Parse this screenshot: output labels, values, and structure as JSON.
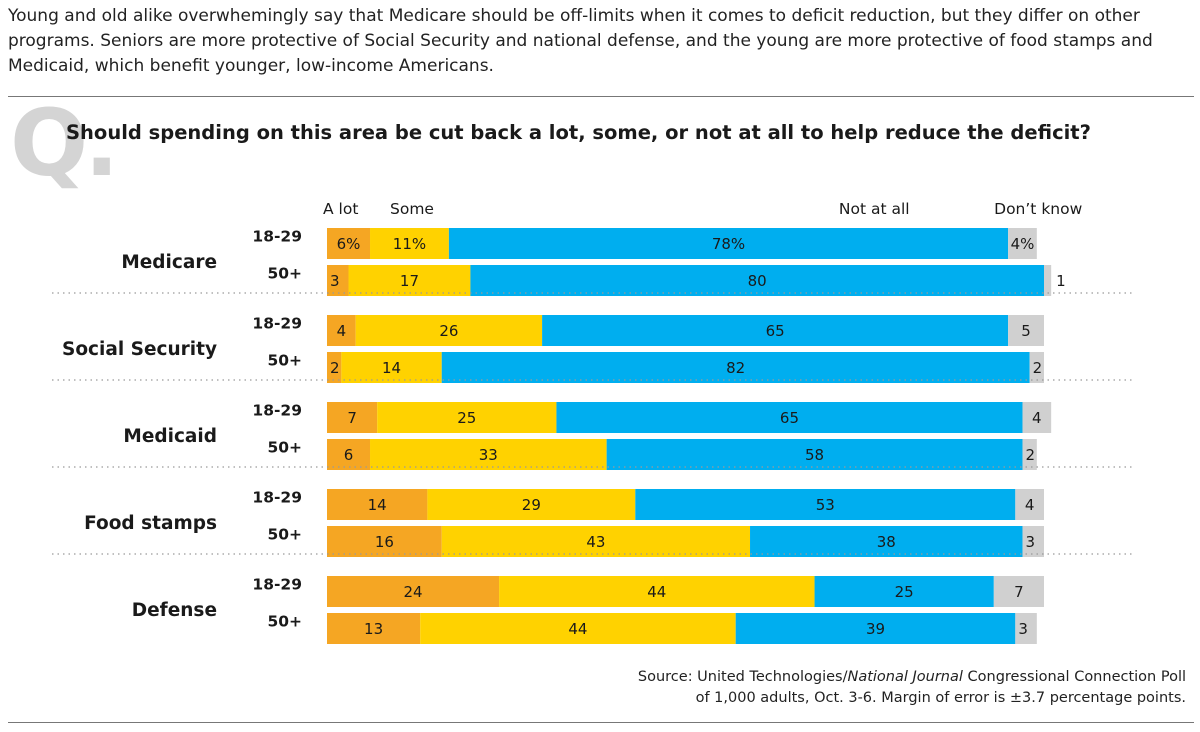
{
  "intro": "Young and old alike overwhemingly say that Medicare should be off-limits when it comes to deficit reduction, but they differ on other programs. Seniors are more protective of Social Security and national defense, and the young are more protective of food stamps and Medicaid, which benefit younger, low-income Americans.",
  "q_mark": "Q.",
  "question": "Should spending on this area be cut back a lot, some, or not at all to help reduce the deficit?",
  "source": {
    "line1_prefix": "Source: United Technologies/",
    "line1_italic": "National Journal",
    "line1_suffix": " Congressional Connection Poll",
    "line2": "of 1,000 adults, Oct. 3-6. Margin of error is ±3.7 percentage points."
  },
  "chart_data": {
    "type": "bar",
    "orientation": "horizontal",
    "stacked": true,
    "unit": "%",
    "series": [
      {
        "name": "A lot",
        "color": "#f5a623"
      },
      {
        "name": "Some",
        "color": "#ffd200"
      },
      {
        "name": "Not at all",
        "color": "#00aeef"
      },
      {
        "name": "Don’t know",
        "color": "#d0d0d0"
      }
    ],
    "groups": [
      {
        "name": "Medicare",
        "rows": [
          {
            "label": "18-29",
            "values": [
              6,
              11,
              78,
              4
            ],
            "labels": [
              "6%",
              "11%",
              "78%",
              "4%"
            ]
          },
          {
            "label": "50+",
            "values": [
              3,
              17,
              80,
              1
            ],
            "labels": [
              "3",
              "17",
              "80",
              "1"
            ]
          }
        ]
      },
      {
        "name": "Social Security",
        "rows": [
          {
            "label": "18-29",
            "values": [
              4,
              26,
              65,
              5
            ],
            "labels": [
              "4",
              "26",
              "65",
              "5"
            ]
          },
          {
            "label": "50+",
            "values": [
              2,
              14,
              82,
              2
            ],
            "labels": [
              "2",
              "14",
              "82",
              "2"
            ]
          }
        ]
      },
      {
        "name": "Medicaid",
        "rows": [
          {
            "label": "18-29",
            "values": [
              7,
              25,
              65,
              4
            ],
            "labels": [
              "7",
              "25",
              "65",
              "4"
            ]
          },
          {
            "label": "50+",
            "values": [
              6,
              33,
              58,
              2
            ],
            "labels": [
              "6",
              "33",
              "58",
              "2"
            ]
          }
        ]
      },
      {
        "name": "Food stamps",
        "rows": [
          {
            "label": "18-29",
            "values": [
              14,
              29,
              53,
              4
            ],
            "labels": [
              "14",
              "29",
              "53",
              "4"
            ]
          },
          {
            "label": "50+",
            "values": [
              16,
              43,
              38,
              3
            ],
            "labels": [
              "16",
              "43",
              "38",
              "3"
            ]
          }
        ]
      },
      {
        "name": "Defense",
        "rows": [
          {
            "label": "18-29",
            "values": [
              24,
              44,
              25,
              7
            ],
            "labels": [
              "24",
              "44",
              "25",
              "7"
            ]
          },
          {
            "label": "50+",
            "values": [
              13,
              44,
              39,
              3
            ],
            "labels": [
              "13",
              "44",
              "39",
              "3"
            ]
          }
        ]
      }
    ]
  }
}
